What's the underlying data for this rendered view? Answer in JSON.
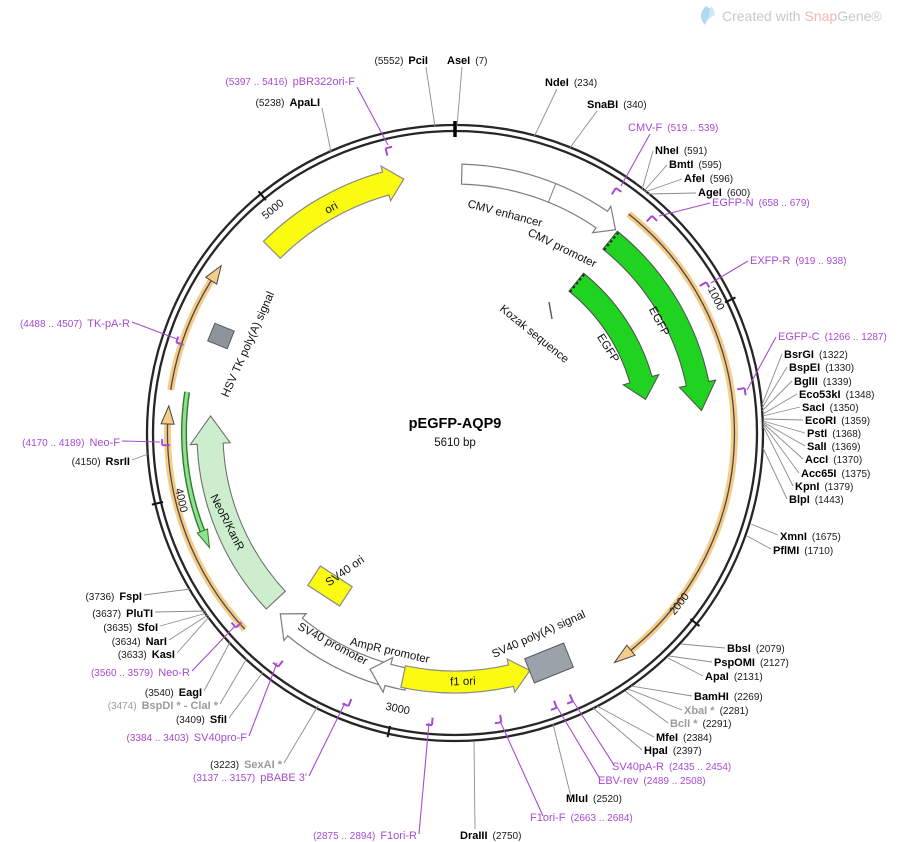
{
  "watermark": {
    "created_with": "Created with ",
    "brand_snap": "Snap",
    "brand_gene": "Gene®"
  },
  "plasmid": {
    "name": "pEGFP-AQP9",
    "size": "5610 bp"
  },
  "ticks": [
    "1000",
    "2000",
    "3000",
    "4000",
    "5000"
  ],
  "features": {
    "ori": "ori",
    "cmv_enhancer": "CMV enhancer",
    "cmv_promoter": "CMV promoter",
    "kozak": "Kozak sequence",
    "egfp_a": "EGFP",
    "egfp_b": "EGFP",
    "hsv_tk_polya": "HSV TK poly(A) signal",
    "neor_kanr": "NeoR/KanR",
    "sv40_ori": "SV40 ori",
    "sv40_promoter": "SV40 promoter",
    "ampr_promoter": "AmpR promoter",
    "f1_ori": "f1 ori",
    "sv40_polya": "SV40 poly(A) signal"
  },
  "enzymes": {
    "pci": {
      "name": "PciI",
      "pos": "(5552)"
    },
    "ase": {
      "name": "AseI",
      "pos": "(7)"
    },
    "nde": {
      "name": "NdeI",
      "pos": "(234)"
    },
    "snabi": {
      "name": "SnaBI",
      "pos": "(340)"
    },
    "nhei": {
      "name": "NheI",
      "pos": "(591)"
    },
    "bmti": {
      "name": "BmtI",
      "pos": "(595)"
    },
    "afei": {
      "name": "AfeI",
      "pos": "(596)"
    },
    "agei": {
      "name": "AgeI",
      "pos": "(600)"
    },
    "bsrgi": {
      "name": "BsrGI",
      "pos": "(1322)"
    },
    "bspei": {
      "name": "BspEI",
      "pos": "(1330)"
    },
    "bglii": {
      "name": "BglII",
      "pos": "(1339)"
    },
    "eco53ki": {
      "name": "Eco53kI",
      "pos": "(1348)"
    },
    "saci": {
      "name": "SacI",
      "pos": "(1350)"
    },
    "ecori": {
      "name": "EcoRI",
      "pos": "(1359)"
    },
    "psti": {
      "name": "PstI",
      "pos": "(1368)"
    },
    "sali": {
      "name": "SalI",
      "pos": "(1369)"
    },
    "acci": {
      "name": "AccI",
      "pos": "(1370)"
    },
    "acc65i": {
      "name": "Acc65I",
      "pos": "(1375)"
    },
    "kpni": {
      "name": "KpnI",
      "pos": "(1379)"
    },
    "blpi": {
      "name": "BlpI",
      "pos": "(1443)"
    },
    "xmni": {
      "name": "XmnI",
      "pos": "(1675)"
    },
    "pflmi": {
      "name": "PflMI",
      "pos": "(1710)"
    },
    "bbsi": {
      "name": "BbsI",
      "pos": "(2079)"
    },
    "pspomi": {
      "name": "PspOMI",
      "pos": "(2127)"
    },
    "apai": {
      "name": "ApaI",
      "pos": "(2131)"
    },
    "bamhi": {
      "name": "BamHI",
      "pos": "(2269)"
    },
    "xbai": {
      "name": "XbaI *",
      "pos": "(2281)"
    },
    "bcli": {
      "name": "BclI *",
      "pos": "(2291)"
    },
    "mfei": {
      "name": "MfeI",
      "pos": "(2384)"
    },
    "hpai": {
      "name": "HpaI",
      "pos": "(2397)"
    },
    "mlui": {
      "name": "MluI",
      "pos": "(2520)"
    },
    "draiii": {
      "name": "DraIII",
      "pos": "(2750)"
    },
    "sexai": {
      "name": "SexAI *",
      "pos": "(3223)"
    },
    "sfii": {
      "name": "SfiI",
      "pos": "(3409)"
    },
    "bspdi_clai": {
      "name": "BspDI * - ClaI *",
      "pos": "(3474)"
    },
    "eagi": {
      "name": "EagI",
      "pos": "(3540)"
    },
    "kasi": {
      "name": "KasI",
      "pos": "(3633)"
    },
    "nari": {
      "name": "NarI",
      "pos": "(3634)"
    },
    "sfoi": {
      "name": "SfoI",
      "pos": "(3635)"
    },
    "pluti": {
      "name": "PluTI",
      "pos": "(3637)"
    },
    "fspi": {
      "name": "FspI",
      "pos": "(3736)"
    },
    "rsrii": {
      "name": "RsrII",
      "pos": "(4150)"
    },
    "apali": {
      "name": "ApaLI",
      "pos": "(5238)"
    }
  },
  "primers": {
    "pbr322ori_f": {
      "name": "pBR322ori-F",
      "pos": "(5397 .. 5416)"
    },
    "cmv_f": {
      "name": "CMV-F",
      "pos": "(519 .. 539)"
    },
    "egfp_n": {
      "name": "EGFP-N",
      "pos": "(658 .. 679)"
    },
    "exfp_r": {
      "name": "EXFP-R",
      "pos": "(919 .. 938)"
    },
    "egfp_c": {
      "name": "EGFP-C",
      "pos": "(1266 .. 1287)"
    },
    "sv40pa_r": {
      "name": "SV40pA-R",
      "pos": "(2435 .. 2454)"
    },
    "ebv_rev": {
      "name": "EBV-rev",
      "pos": "(2489 .. 2508)"
    },
    "f1ori_f": {
      "name": "F1ori-F",
      "pos": "(2663 .. 2684)"
    },
    "f1ori_r": {
      "name": "F1ori-R",
      "pos": "(2875 .. 2894)"
    },
    "pbabe_3": {
      "name": "pBABE 3'",
      "pos": "(3137 .. 3157)"
    },
    "sv40pro_f": {
      "name": "SV40pro-F",
      "pos": "(3384 .. 3403)"
    },
    "neo_r": {
      "name": "Neo-R",
      "pos": "(3560 .. 3579)"
    },
    "neo_f": {
      "name": "Neo-F",
      "pos": "(4170 .. 4189)"
    },
    "tk_pa_r": {
      "name": "TK-pA-R",
      "pos": "(4488 .. 4507)"
    }
  }
}
